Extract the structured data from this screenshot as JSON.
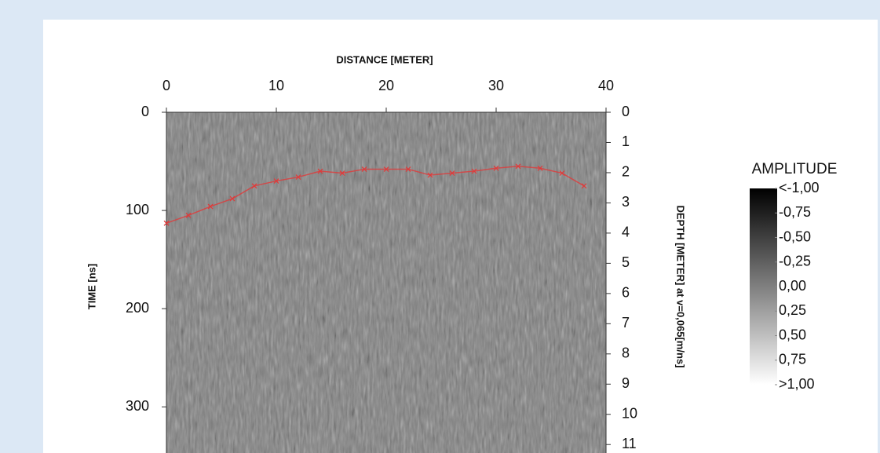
{
  "chart_data": {
    "type": "radargram",
    "title": "DISTANCE [METER]",
    "y_label": "TIME [ns]",
    "y2_label": "DEPTH [METER] at v=0,065[m/ns]",
    "xlim": [
      0,
      40
    ],
    "xticks": [
      0,
      10,
      20,
      30,
      40
    ],
    "ylim": [
      0,
      347
    ],
    "yticks": [
      0,
      100,
      200,
      300
    ],
    "y2lim": [
      0,
      11.28
    ],
    "y2ticks": [
      0,
      1,
      2,
      3,
      4,
      5,
      6,
      7,
      8,
      9,
      10,
      11
    ],
    "series": [
      {
        "x": [
          0,
          2,
          4,
          6,
          8,
          10,
          12,
          14,
          16,
          18,
          20,
          22,
          24,
          26,
          28,
          30,
          32,
          34,
          36,
          38
        ],
        "values": [
          113,
          105,
          96,
          88,
          75,
          70,
          66,
          60,
          62,
          58,
          58,
          58,
          64,
          62,
          60,
          57,
          55,
          57,
          62,
          75
        ],
        "color": "#e03a3a"
      }
    ],
    "colorbar": {
      "title": "AMPLITUDE",
      "lim": [
        -1,
        1
      ],
      "ticks": [
        {
          "value": -1,
          "label": "<-1,00"
        },
        {
          "value": -0.75,
          "label": "-0,75"
        },
        {
          "value": -0.5,
          "label": "-0,50"
        },
        {
          "value": -0.25,
          "label": "-0,25"
        },
        {
          "value": 0,
          "label": "0,00"
        },
        {
          "value": 0.25,
          "label": "0,25"
        },
        {
          "value": 0.5,
          "label": "0,50"
        },
        {
          "value": 0.75,
          "label": "0,75"
        },
        {
          "value": 1,
          "label": ">1,00"
        }
      ]
    }
  }
}
